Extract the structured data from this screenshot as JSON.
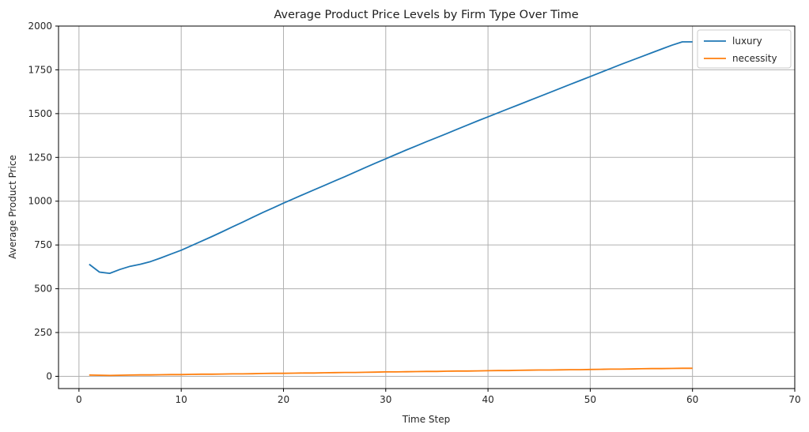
{
  "chart_data": {
    "type": "line",
    "title": "Average Product Price Levels by Firm Type Over Time",
    "xlabel": "Time Step",
    "ylabel": "Average Product Price",
    "xlim": [
      -2,
      70
    ],
    "ylim": [
      -70,
      2000
    ],
    "xticks": [
      0,
      10,
      20,
      30,
      40,
      50,
      60,
      70
    ],
    "yticks": [
      0,
      250,
      500,
      750,
      1000,
      1250,
      1500,
      1750,
      2000
    ],
    "grid": true,
    "legend_position": "top-right",
    "series": [
      {
        "name": "luxury",
        "color": "#1f77b4",
        "x": [
          1,
          2,
          3,
          4,
          5,
          6,
          7,
          8,
          9,
          10,
          11,
          12,
          13,
          14,
          15,
          16,
          17,
          18,
          19,
          20,
          21,
          22,
          23,
          24,
          25,
          26,
          27,
          28,
          29,
          30,
          31,
          32,
          33,
          34,
          35,
          36,
          37,
          38,
          39,
          40,
          41,
          42,
          43,
          44,
          45,
          46,
          47,
          48,
          49,
          50,
          51,
          52,
          53,
          54,
          55,
          56,
          57,
          58,
          59,
          60
        ],
        "y": [
          640,
          595,
          588,
          610,
          628,
          640,
          655,
          676,
          698,
          720,
          746,
          772,
          798,
          825,
          853,
          880,
          908,
          936,
          962,
          989,
          1014,
          1040,
          1065,
          1090,
          1115,
          1140,
          1166,
          1192,
          1217,
          1242,
          1267,
          1292,
          1316,
          1340,
          1363,
          1387,
          1411,
          1435,
          1459,
          1482,
          1505,
          1528,
          1551,
          1574,
          1597,
          1620,
          1643,
          1666,
          1689,
          1712,
          1735,
          1758,
          1781,
          1803,
          1825,
          1847,
          1869,
          1891,
          1910,
          1910
        ]
      },
      {
        "name": "necessity",
        "color": "#ff7f0e",
        "x": [
          1,
          2,
          3,
          4,
          5,
          6,
          7,
          8,
          9,
          10,
          11,
          12,
          13,
          14,
          15,
          16,
          17,
          18,
          19,
          20,
          21,
          22,
          23,
          24,
          25,
          26,
          27,
          28,
          29,
          30,
          31,
          32,
          33,
          34,
          35,
          36,
          37,
          38,
          39,
          40,
          41,
          42,
          43,
          44,
          45,
          46,
          47,
          48,
          49,
          50,
          51,
          52,
          53,
          54,
          55,
          56,
          57,
          58,
          59,
          60
        ],
        "y": [
          7,
          6,
          5,
          6,
          7,
          8,
          8,
          9,
          10,
          10,
          11,
          12,
          12,
          13,
          14,
          14,
          15,
          16,
          17,
          17,
          18,
          19,
          19,
          20,
          21,
          22,
          22,
          23,
          24,
          25,
          25,
          26,
          27,
          28,
          28,
          29,
          30,
          30,
          31,
          32,
          33,
          33,
          34,
          35,
          36,
          36,
          37,
          38,
          38,
          39,
          40,
          41,
          41,
          42,
          43,
          44,
          44,
          45,
          46,
          46
        ]
      }
    ]
  }
}
